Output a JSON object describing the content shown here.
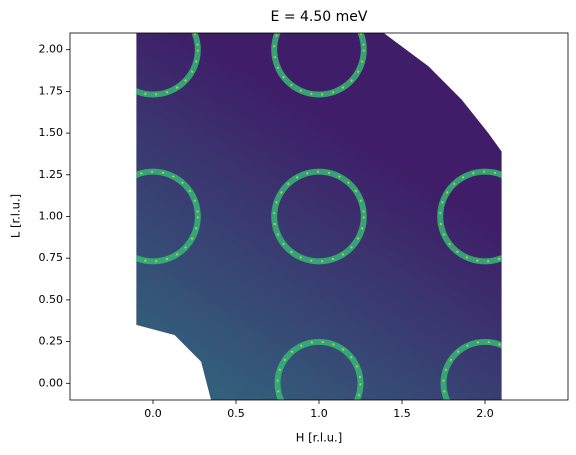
{
  "chart_data": {
    "type": "heatmap",
    "title": "E = 4.50 meV",
    "x_label": "H [r.l.u.]",
    "y_label": "L [r.l.u.]",
    "xlim": [
      -0.5,
      2.5
    ],
    "ylim": [
      -0.1,
      2.1
    ],
    "xticks": [
      {
        "value": 0,
        "label": "0.0"
      },
      0.5,
      {
        "value": 1,
        "label": "1.0"
      },
      1.5,
      {
        "value": 2,
        "label": "2.0"
      }
    ],
    "yticks": [
      {
        "value": 0,
        "label": "0.00"
      },
      {
        "value": 0.25,
        "label": "0.25"
      },
      {
        "value": 0.5,
        "label": "0.50"
      },
      {
        "value": 0.75,
        "label": "0.75"
      },
      {
        "value": 1,
        "label": "1.00"
      },
      {
        "value": 1.25,
        "label": "1.25"
      },
      {
        "value": 1.5,
        "label": "1.50"
      },
      {
        "value": 1.75,
        "label": "1.75"
      },
      {
        "value": 2,
        "label": "2.00"
      }
    ],
    "region": {
      "color": "#3f1d68",
      "x": [
        -0.1,
        -0.1,
        1.39,
        1.66,
        1.86,
        2.02,
        2.1,
        2.1,
        0.35,
        0.29,
        0.13,
        -0.1
      ],
      "y": [
        0.35,
        2.1,
        2.1,
        1.9,
        1.7,
        1.5,
        1.39,
        -0.1,
        -0.1,
        0.13,
        0.29,
        0.35
      ]
    },
    "rings": {
      "color": "#35b779",
      "x": [
        0,
        0,
        1,
        1,
        1,
        2,
        2
      ],
      "y": [
        1,
        2,
        0,
        1,
        2,
        0,
        1
      ],
      "radius": [
        0.27,
        0.27,
        0.25,
        0.27,
        0.27,
        0.25,
        0.27
      ]
    }
  }
}
